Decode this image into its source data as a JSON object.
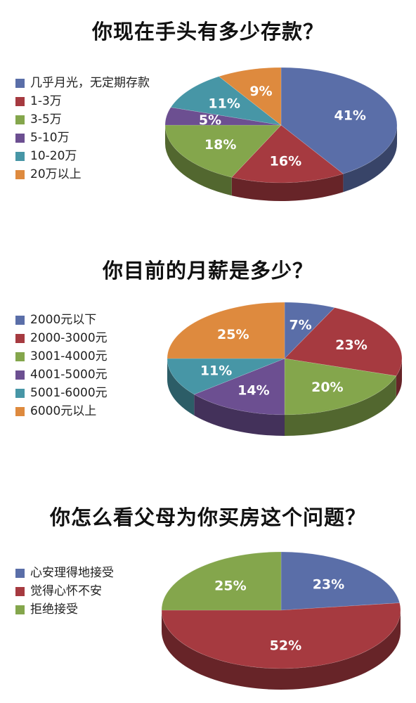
{
  "colors": {
    "blue": "#5a6ea8",
    "red": "#a63a40",
    "green": "#84a64c",
    "purple": "#6c4f91",
    "teal": "#4796a6",
    "orange": "#de8a3e"
  },
  "chart_data": [
    {
      "type": "pie",
      "title": "你现在手头有多少存款？",
      "categories": [
        "几乎月光，无定期存款",
        "1-3万",
        "3-5万",
        "5-10万",
        "10-20万",
        "20万以上"
      ],
      "values": [
        41,
        16,
        18,
        5,
        11,
        9
      ],
      "labels": [
        "41%",
        "16%",
        "18%",
        "5%",
        "11%",
        "9%"
      ],
      "colors": [
        "#5a6ea8",
        "#a63a40",
        "#84a64c",
        "#6c4f91",
        "#4796a6",
        "#de8a3e"
      ],
      "legend": "left"
    },
    {
      "type": "pie",
      "title": "你目前的月薪是多少？",
      "categories": [
        "2000元以下",
        "2000-3000元",
        "3001-4000元",
        "4001-5000元",
        "5001-6000元",
        "6000元以上"
      ],
      "values": [
        7,
        23,
        20,
        14,
        11,
        25
      ],
      "labels": [
        "7%",
        "23%",
        "20%",
        "14%",
        "11%",
        "25%"
      ],
      "colors": [
        "#5a6ea8",
        "#a63a40",
        "#84a64c",
        "#6c4f91",
        "#4796a6",
        "#de8a3e"
      ],
      "legend": "left"
    },
    {
      "type": "pie",
      "title": "你怎么看父母为你买房这个问题？",
      "categories": [
        "心安理得地接受",
        "觉得心怀不安",
        "拒绝接受"
      ],
      "values": [
        23,
        52,
        25
      ],
      "labels": [
        "23%",
        "52%",
        "25%"
      ],
      "colors": [
        "#5a6ea8",
        "#a63a40",
        "#84a64c"
      ],
      "legend": "left"
    }
  ]
}
